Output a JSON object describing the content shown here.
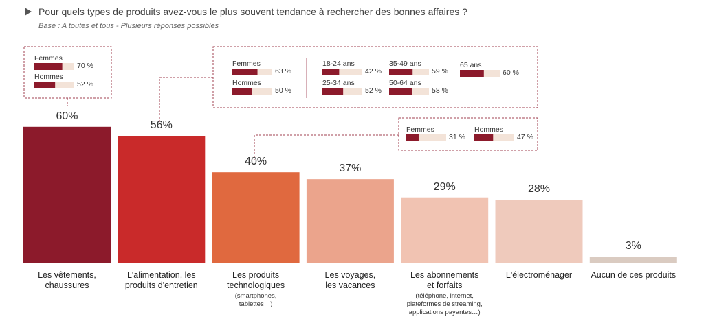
{
  "chart_data": {
    "type": "bar",
    "title": "Pour quels types de produits avez-vous le plus souvent tendance à rechercher des bonnes affaires ?",
    "subtitle": "Base : A toutes et tous - Plusieurs réponses possibles",
    "categories": [
      "Les vêtements,\nchaussures",
      "L'alimentation, les\nproduits d'entretien",
      "Les produits\ntechnologiques",
      "Les voyages,\nles vacances",
      "Les abonnements\net forfaits",
      "L'électroménager",
      "Aucun de ces produits"
    ],
    "category_notes": [
      null,
      null,
      "(smartphones,\ntablettes…)",
      null,
      "(téléphone, internet,\nplateformes de streaming,\napplications payantes…)",
      null,
      null
    ],
    "values": [
      60,
      56,
      40,
      37,
      29,
      28,
      3
    ],
    "value_labels": [
      "60%",
      "56%",
      "40%",
      "37%",
      "29%",
      "28%",
      "3%"
    ],
    "colors": [
      "#8c1a2b",
      "#c92a2a",
      "#e0693f",
      "#eba48c",
      "#f1c3b2",
      "#efcabc",
      "#dacbc1"
    ],
    "breakdown_color": "#8c1a2b",
    "breakdown_track_color": "#f3e3d8",
    "breakdowns": [
      {
        "groups": [
          {
            "name": "Femmes",
            "value": 70,
            "value_label": "70 %"
          },
          {
            "name": "Hommes",
            "value": 52,
            "value_label": "52 %"
          }
        ]
      },
      {
        "groups": [
          {
            "name": "Femmes",
            "value": 63,
            "value_label": "63 %"
          },
          {
            "name": "Hommes",
            "value": 50,
            "value_label": "50 %"
          },
          {
            "name": "18-24 ans",
            "value": 42,
            "value_label": "42 %"
          },
          {
            "name": "25-34 ans",
            "value": 52,
            "value_label": "52 %"
          },
          {
            "name": "35-49 ans",
            "value": 59,
            "value_label": "59 %"
          },
          {
            "name": "50-64 ans",
            "value": 58,
            "value_label": "58 %"
          },
          {
            "name": "65 ans",
            "value": 60,
            "value_label": "60 %"
          }
        ]
      },
      {
        "groups": [
          {
            "name": "Femmes",
            "value": 31,
            "value_label": "31 %"
          },
          {
            "name": "Hommes",
            "value": 47,
            "value_label": "47 %"
          }
        ]
      }
    ]
  }
}
